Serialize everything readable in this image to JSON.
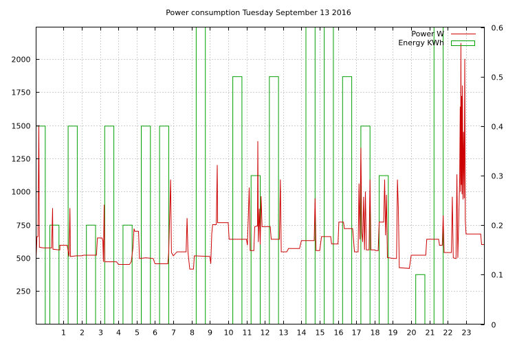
{
  "chart_data": {
    "type": "line",
    "title": "Power consumption Tuesday September 13 2016",
    "xlabel": "",
    "ylabel": "",
    "y2label": "",
    "xlim": [
      -0.5,
      24.0
    ],
    "ylim": [
      0,
      2240
    ],
    "y2lim": [
      0,
      0.6
    ],
    "x_ticks": [
      1,
      2,
      3,
      4,
      5,
      6,
      7,
      8,
      9,
      10,
      11,
      12,
      13,
      14,
      15,
      16,
      17,
      18,
      19,
      20,
      21,
      22,
      23
    ],
    "y_ticks": [
      250,
      500,
      750,
      1000,
      1250,
      1500,
      1750,
      2000
    ],
    "y2_ticks": [
      0,
      0.1,
      0.2,
      0.3,
      0.4,
      0.5,
      0.6
    ],
    "grid": true,
    "legend_position": "top-right",
    "colors": {
      "power": "#cc0000",
      "energy": "#00a000",
      "grid": "#a0a0a0"
    },
    "series": [
      {
        "name": "Power W",
        "axis": "left",
        "style": "line",
        "points": [
          [
            -0.5,
            500
          ],
          [
            -0.45,
            660
          ],
          [
            -0.4,
            660
          ],
          [
            -0.35,
            1500
          ],
          [
            -0.32,
            580
          ],
          [
            -0.1,
            575
          ],
          [
            0.0,
            575
          ],
          [
            0.35,
            575
          ],
          [
            0.4,
            875
          ],
          [
            0.42,
            565
          ],
          [
            0.75,
            560
          ],
          [
            0.8,
            560
          ],
          [
            0.8,
            595
          ],
          [
            1.2,
            595
          ],
          [
            1.3,
            510
          ],
          [
            1.35,
            875
          ],
          [
            1.38,
            510
          ],
          [
            1.7,
            515
          ],
          [
            2.0,
            515
          ],
          [
            2.1,
            520
          ],
          [
            2.8,
            520
          ],
          [
            2.85,
            650
          ],
          [
            3.1,
            650
          ],
          [
            3.15,
            630
          ],
          [
            3.18,
            470
          ],
          [
            3.22,
            900
          ],
          [
            3.25,
            470
          ],
          [
            3.9,
            470
          ],
          [
            4.0,
            450
          ],
          [
            4.6,
            450
          ],
          [
            4.7,
            470
          ],
          [
            4.8,
            580
          ],
          [
            4.85,
            720
          ],
          [
            4.9,
            700
          ],
          [
            5.1,
            700
          ],
          [
            5.15,
            495
          ],
          [
            5.5,
            500
          ],
          [
            5.9,
            495
          ],
          [
            6.0,
            455
          ],
          [
            6.7,
            455
          ],
          [
            6.75,
            540
          ],
          [
            6.85,
            1090
          ],
          [
            6.9,
            540
          ],
          [
            7.0,
            515
          ],
          [
            7.2,
            545
          ],
          [
            7.7,
            545
          ],
          [
            7.75,
            800
          ],
          [
            7.8,
            545
          ],
          [
            7.9,
            415
          ],
          [
            8.1,
            415
          ],
          [
            8.15,
            515
          ],
          [
            9.0,
            510
          ],
          [
            9.05,
            455
          ],
          [
            9.1,
            680
          ],
          [
            9.15,
            750
          ],
          [
            9.35,
            750
          ],
          [
            9.4,
            1200
          ],
          [
            9.42,
            765
          ],
          [
            10.0,
            765
          ],
          [
            10.05,
            640
          ],
          [
            11.0,
            640
          ],
          [
            11.05,
            595
          ],
          [
            11.15,
            1030
          ],
          [
            11.2,
            555
          ],
          [
            11.4,
            555
          ],
          [
            11.45,
            735
          ],
          [
            11.6,
            740
          ],
          [
            11.62,
            1380
          ],
          [
            11.65,
            620
          ],
          [
            11.7,
            870
          ],
          [
            11.75,
            600
          ],
          [
            11.8,
            965
          ],
          [
            11.85,
            735
          ],
          [
            12.3,
            735
          ],
          [
            12.35,
            640
          ],
          [
            12.8,
            640
          ],
          [
            12.85,
            1090
          ],
          [
            12.9,
            545
          ],
          [
            13.2,
            545
          ],
          [
            13.3,
            570
          ],
          [
            13.9,
            570
          ],
          [
            14.0,
            630
          ],
          [
            14.7,
            630
          ],
          [
            14.75,
            950
          ],
          [
            14.8,
            555
          ],
          [
            15.0,
            555
          ],
          [
            15.1,
            660
          ],
          [
            15.6,
            660
          ],
          [
            15.65,
            605
          ],
          [
            16.0,
            605
          ],
          [
            16.05,
            770
          ],
          [
            16.3,
            770
          ],
          [
            16.35,
            720
          ],
          [
            16.8,
            720
          ],
          [
            16.9,
            545
          ],
          [
            17.1,
            545
          ],
          [
            17.15,
            1060
          ],
          [
            17.2,
            640
          ],
          [
            17.25,
            1330
          ],
          [
            17.3,
            690
          ],
          [
            17.35,
            620
          ],
          [
            17.4,
            960
          ],
          [
            17.45,
            560
          ],
          [
            17.5,
            1000
          ],
          [
            17.55,
            560
          ],
          [
            17.7,
            560
          ],
          [
            17.75,
            1090
          ],
          [
            17.8,
            560
          ],
          [
            18.0,
            560
          ],
          [
            18.05,
            555
          ],
          [
            18.2,
            555
          ],
          [
            18.25,
            770
          ],
          [
            18.5,
            770
          ],
          [
            18.55,
            1090
          ],
          [
            18.6,
            670
          ],
          [
            18.65,
            975
          ],
          [
            18.7,
            500
          ],
          [
            18.8,
            500
          ],
          [
            19.0,
            495
          ],
          [
            19.2,
            495
          ],
          [
            19.25,
            1090
          ],
          [
            19.3,
            880
          ],
          [
            19.35,
            425
          ],
          [
            19.9,
            420
          ],
          [
            20.0,
            520
          ],
          [
            20.8,
            520
          ],
          [
            20.85,
            640
          ],
          [
            21.5,
            640
          ],
          [
            21.55,
            595
          ],
          [
            21.7,
            595
          ],
          [
            21.75,
            820
          ],
          [
            21.8,
            540
          ],
          [
            22.2,
            540
          ],
          [
            22.25,
            960
          ],
          [
            22.3,
            500
          ],
          [
            22.45,
            495
          ],
          [
            22.5,
            1130
          ],
          [
            22.55,
            500
          ],
          [
            22.6,
            770
          ],
          [
            22.65,
            1100
          ],
          [
            22.68,
            1640
          ],
          [
            22.7,
            1000
          ],
          [
            22.72,
            2120
          ],
          [
            22.74,
            1050
          ],
          [
            22.76,
            1720
          ],
          [
            22.78,
            980
          ],
          [
            22.8,
            1800
          ],
          [
            22.83,
            940
          ],
          [
            22.86,
            1450
          ],
          [
            22.9,
            950
          ],
          [
            22.93,
            2000
          ],
          [
            22.96,
            780
          ],
          [
            23.0,
            680
          ],
          [
            23.8,
            680
          ],
          [
            23.85,
            600
          ],
          [
            24.0,
            600
          ]
        ]
      },
      {
        "name": "Energy KWh",
        "axis": "right",
        "style": "boxes",
        "bars": [
          {
            "x": -0.25,
            "value": 0.4
          },
          {
            "x": 0.5,
            "value": 0.2
          },
          {
            "x": 1.5,
            "value": 0.4
          },
          {
            "x": 2.5,
            "value": 0.2
          },
          {
            "x": 3.5,
            "value": 0.4
          },
          {
            "x": 4.5,
            "value": 0.2
          },
          {
            "x": 5.5,
            "value": 0.4
          },
          {
            "x": 6.5,
            "value": 0.4
          },
          {
            "x": 8.5,
            "value": 0.6
          },
          {
            "x": 10.5,
            "value": 0.5
          },
          {
            "x": 11.5,
            "value": 0.3
          },
          {
            "x": 12.5,
            "value": 0.5
          },
          {
            "x": 14.5,
            "value": 0.6
          },
          {
            "x": 15.5,
            "value": 0.6
          },
          {
            "x": 16.5,
            "value": 0.5
          },
          {
            "x": 17.5,
            "value": 0.4
          },
          {
            "x": 18.5,
            "value": 0.3
          },
          {
            "x": 20.5,
            "value": 0.1
          },
          {
            "x": 21.5,
            "value": 0.6
          }
        ]
      }
    ]
  }
}
